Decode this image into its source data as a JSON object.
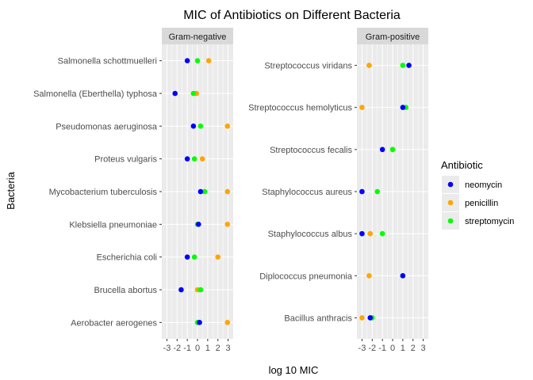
{
  "chart_data": {
    "type": "scatter",
    "title": "MIC of Antibiotics on Different Bacteria",
    "xlabel": "log 10 MIC",
    "ylabel": "Bacteria",
    "xlim": [
      -3.5,
      3.5
    ],
    "x_ticks": [
      -3,
      -2,
      -1,
      0,
      1,
      2,
      3
    ],
    "x_tick_labels": [
      "-3",
      "-2",
      "-1",
      "0",
      "1",
      "2",
      "3"
    ],
    "grid": true,
    "legend": {
      "title": "Antibiotic",
      "position": "right",
      "items": [
        {
          "name": "neomycin",
          "color": "#0000ff"
        },
        {
          "name": "penicillin",
          "color": "#ffa500"
        },
        {
          "name": "streptomycin",
          "color": "#00ff00"
        }
      ]
    },
    "panels": [
      {
        "label": "Gram-negative",
        "categories": [
          "Aerobacter aerogenes",
          "Brucella abortus",
          "Escherichia coli",
          "Klebsiella pneumoniae",
          "Mycobacterium tuberculosis",
          "Proteus vulgaris",
          "Pseudomonas aeruginosa",
          "Salmonella (Eberthella) typhosa",
          "Salmonella schottmuelleri"
        ],
        "series": [
          {
            "name": "penicillin",
            "values": [
              2.94,
              0.0,
              2.0,
              2.94,
              2.94,
              0.48,
              2.94,
              -0.1,
              1.1
            ]
          },
          {
            "name": "streptomycin",
            "values": [
              0.0,
              0.3,
              -0.3,
              0.0,
              0.7,
              -0.3,
              0.3,
              -0.4,
              0.0
            ]
          },
          {
            "name": "neomycin",
            "values": [
              0.2,
              -1.6,
              -1.0,
              0.1,
              0.3,
              -1.0,
              -0.4,
              -2.2,
              -1.0
            ]
          }
        ]
      },
      {
        "label": "Gram-positive",
        "categories": [
          "Bacillus anthracis",
          "Diplococcus pneumonia",
          "Staphylococcus albus",
          "Staphylococcus aureus",
          "Streptococcus fecalis",
          "Streptococcus hemolyticus",
          "Streptococcus viridans"
        ],
        "series": [
          {
            "name": "penicillin",
            "values": [
              -3.0,
              -2.3,
              -2.2,
              -3.0,
              0.0,
              -3.0,
              -2.3
            ]
          },
          {
            "name": "streptomycin",
            "values": [
              -2.0,
              1.0,
              -1.0,
              -1.5,
              0.0,
              1.3,
              1.0
            ]
          },
          {
            "name": "neomycin",
            "values": [
              -2.2,
              1.0,
              -3.0,
              -3.0,
              -1.0,
              1.0,
              1.6
            ]
          }
        ]
      }
    ]
  }
}
